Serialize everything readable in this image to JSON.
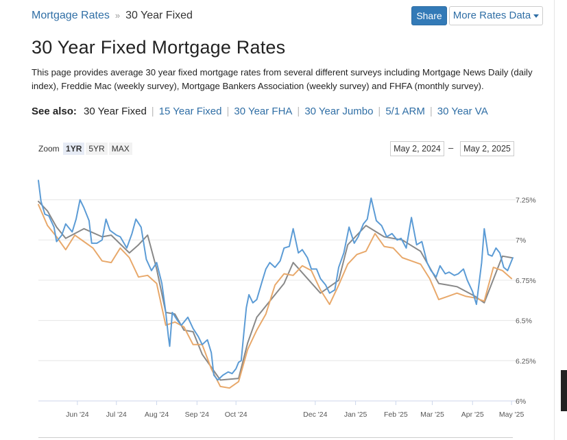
{
  "breadcrumb": {
    "home": "Mortgage Rates",
    "separator": "»",
    "current": "30 Year Fixed"
  },
  "toolbar": {
    "share_label": "Share",
    "more_label": "More Rates Data"
  },
  "page": {
    "title": "30 Year Fixed Mortgage Rates",
    "description": "This page provides average 30 year fixed mortgage rates from several different surveys including Mortgage News Daily (daily index), Freddie Mac (weekly survey), Mortgage Bankers Association (weekly survey) and FHFA (monthly survey)."
  },
  "see_also": {
    "label": "See also:",
    "current": "30 Year Fixed",
    "links": [
      "15 Year Fixed",
      "30 Year FHA",
      "30 Year Jumbo",
      "5/1 ARM",
      "30 Year VA"
    ]
  },
  "zoom": {
    "label": "Zoom",
    "buttons": [
      "1YR",
      "5YR",
      "MAX"
    ],
    "active": "1YR"
  },
  "range": {
    "from": "May 2, 2024",
    "to": "May 2, 2025",
    "dash": "–"
  },
  "colors": {
    "accent": "#2f6ea5",
    "mnd": "#5b9bd5",
    "freddie": "#e8a86a",
    "mba": "#888888"
  },
  "chart_data": {
    "type": "line",
    "x_range": [
      "2024-05-02",
      "2025-05-02"
    ],
    "ylim": [
      6.0,
      7.35
    ],
    "y_ticks": [
      6,
      6.25,
      6.5,
      6.75,
      7,
      7.25
    ],
    "y_tick_labels": [
      "6%",
      "6.25%",
      "6.5%",
      "6.75%",
      "7%",
      "7.25%"
    ],
    "x_ticks": [
      "2024-06-01",
      "2024-07-01",
      "2024-08-01",
      "2024-09-01",
      "2024-10-01",
      "2024-12-01",
      "2025-01-01",
      "2025-02-01",
      "2025-03-01",
      "2025-04-01",
      "2025-05-01"
    ],
    "x_tick_labels": [
      "Jun '24",
      "Jul '24",
      "Aug '24",
      "Sep '24",
      "Oct '24",
      "Dec '24",
      "Jan '25",
      "Feb '25",
      "Mar '25",
      "Apr '25",
      "May '25"
    ],
    "grid": true,
    "legend": "none",
    "series": [
      {
        "color": "#5b9bd5",
        "points": [
          [
            "2024-05-02",
            7.37
          ],
          [
            "2024-05-04",
            7.24
          ],
          [
            "2024-05-07",
            7.16
          ],
          [
            "2024-05-10",
            7.15
          ],
          [
            "2024-05-14",
            7.08
          ],
          [
            "2024-05-16",
            6.99
          ],
          [
            "2024-05-20",
            7.03
          ],
          [
            "2024-05-23",
            7.1
          ],
          [
            "2024-05-28",
            7.05
          ],
          [
            "2024-05-31",
            7.13
          ],
          [
            "2024-06-03",
            7.25
          ],
          [
            "2024-06-06",
            7.2
          ],
          [
            "2024-06-10",
            7.12
          ],
          [
            "2024-06-12",
            6.98
          ],
          [
            "2024-06-16",
            6.98
          ],
          [
            "2024-06-20",
            7.0
          ],
          [
            "2024-06-23",
            7.13
          ],
          [
            "2024-06-26",
            7.06
          ],
          [
            "2024-07-01",
            7.03
          ],
          [
            "2024-07-04",
            7.02
          ],
          [
            "2024-07-09",
            6.95
          ],
          [
            "2024-07-13",
            7.04
          ],
          [
            "2024-07-16",
            7.13
          ],
          [
            "2024-07-20",
            7.08
          ],
          [
            "2024-07-24",
            6.88
          ],
          [
            "2024-07-28",
            6.81
          ],
          [
            "2024-08-01",
            6.86
          ],
          [
            "2024-08-05",
            6.73
          ],
          [
            "2024-08-08",
            6.55
          ],
          [
            "2024-08-10",
            6.4
          ],
          [
            "2024-08-11",
            6.34
          ],
          [
            "2024-08-13",
            6.55
          ],
          [
            "2024-08-17",
            6.5
          ],
          [
            "2024-08-20",
            6.47
          ],
          [
            "2024-08-25",
            6.52
          ],
          [
            "2024-08-29",
            6.45
          ],
          [
            "2024-09-02",
            6.4
          ],
          [
            "2024-09-05",
            6.35
          ],
          [
            "2024-09-09",
            6.38
          ],
          [
            "2024-09-12",
            6.3
          ],
          [
            "2024-09-14",
            6.16
          ],
          [
            "2024-09-17",
            6.13
          ],
          [
            "2024-09-21",
            6.16
          ],
          [
            "2024-09-25",
            6.18
          ],
          [
            "2024-09-28",
            6.17
          ],
          [
            "2024-10-01",
            6.2
          ],
          [
            "2024-10-03",
            6.24
          ],
          [
            "2024-10-05",
            6.25
          ],
          [
            "2024-10-07",
            6.42
          ],
          [
            "2024-10-09",
            6.58
          ],
          [
            "2024-10-11",
            6.66
          ],
          [
            "2024-10-14",
            6.61
          ],
          [
            "2024-10-17",
            6.63
          ],
          [
            "2024-10-21",
            6.74
          ],
          [
            "2024-10-24",
            6.82
          ],
          [
            "2024-10-27",
            6.86
          ],
          [
            "2024-10-31",
            6.83
          ],
          [
            "2024-11-04",
            6.87
          ],
          [
            "2024-11-07",
            6.95
          ],
          [
            "2024-11-11",
            6.96
          ],
          [
            "2024-11-14",
            7.07
          ],
          [
            "2024-11-18",
            6.92
          ],
          [
            "2024-11-21",
            6.94
          ],
          [
            "2024-11-25",
            6.89
          ],
          [
            "2024-11-28",
            6.82
          ],
          [
            "2024-12-02",
            6.82
          ],
          [
            "2024-12-05",
            6.76
          ],
          [
            "2024-12-09",
            6.72
          ],
          [
            "2024-12-12",
            6.67
          ],
          [
            "2024-12-16",
            6.69
          ],
          [
            "2024-12-19",
            6.83
          ],
          [
            "2024-12-23",
            6.92
          ],
          [
            "2024-12-27",
            7.08
          ],
          [
            "2024-12-31",
            6.98
          ],
          [
            "2025-01-03",
            7.02
          ],
          [
            "2025-01-07",
            7.1
          ],
          [
            "2025-01-10",
            7.13
          ],
          [
            "2025-01-13",
            7.26
          ],
          [
            "2025-01-17",
            7.12
          ],
          [
            "2025-01-21",
            7.09
          ],
          [
            "2025-01-25",
            7.02
          ],
          [
            "2025-01-29",
            7.04
          ],
          [
            "2025-02-02",
            7.0
          ],
          [
            "2025-02-05",
            7.01
          ],
          [
            "2025-02-09",
            6.95
          ],
          [
            "2025-02-13",
            7.14
          ],
          [
            "2025-02-17",
            6.97
          ],
          [
            "2025-02-21",
            6.99
          ],
          [
            "2025-02-25",
            6.86
          ],
          [
            "2025-02-28",
            6.81
          ],
          [
            "2025-03-04",
            6.77
          ],
          [
            "2025-03-07",
            6.84
          ],
          [
            "2025-03-11",
            6.79
          ],
          [
            "2025-03-14",
            6.8
          ],
          [
            "2025-03-18",
            6.78
          ],
          [
            "2025-03-21",
            6.79
          ],
          [
            "2025-03-25",
            6.82
          ],
          [
            "2025-03-28",
            6.75
          ],
          [
            "2025-04-01",
            6.68
          ],
          [
            "2025-04-04",
            6.6
          ],
          [
            "2025-04-08",
            6.86
          ],
          [
            "2025-04-10",
            7.07
          ],
          [
            "2025-04-13",
            6.91
          ],
          [
            "2025-04-16",
            6.9
          ],
          [
            "2025-04-19",
            6.95
          ],
          [
            "2025-04-22",
            6.92
          ],
          [
            "2025-04-25",
            6.83
          ],
          [
            "2025-04-28",
            6.81
          ],
          [
            "2025-05-02",
            6.89
          ]
        ]
      },
      {
        "color": "#e8a86a",
        "points": [
          [
            "2024-05-02",
            7.22
          ],
          [
            "2024-05-09",
            7.09
          ],
          [
            "2024-05-16",
            7.02
          ],
          [
            "2024-05-23",
            6.94
          ],
          [
            "2024-05-30",
            7.03
          ],
          [
            "2024-06-06",
            6.99
          ],
          [
            "2024-06-13",
            6.95
          ],
          [
            "2024-06-20",
            6.87
          ],
          [
            "2024-06-27",
            6.86
          ],
          [
            "2024-07-04",
            6.95
          ],
          [
            "2024-07-11",
            6.89
          ],
          [
            "2024-07-18",
            6.77
          ],
          [
            "2024-07-25",
            6.78
          ],
          [
            "2024-08-01",
            6.73
          ],
          [
            "2024-08-08",
            6.47
          ],
          [
            "2024-08-15",
            6.49
          ],
          [
            "2024-08-22",
            6.46
          ],
          [
            "2024-08-29",
            6.35
          ],
          [
            "2024-09-05",
            6.35
          ],
          [
            "2024-09-12",
            6.2
          ],
          [
            "2024-09-19",
            6.09
          ],
          [
            "2024-09-26",
            6.08
          ],
          [
            "2024-10-03",
            6.12
          ],
          [
            "2024-10-10",
            6.32
          ],
          [
            "2024-10-17",
            6.44
          ],
          [
            "2024-10-24",
            6.54
          ],
          [
            "2024-10-31",
            6.72
          ],
          [
            "2024-11-07",
            6.79
          ],
          [
            "2024-11-14",
            6.78
          ],
          [
            "2024-11-21",
            6.84
          ],
          [
            "2024-11-28",
            6.81
          ],
          [
            "2024-12-05",
            6.69
          ],
          [
            "2024-12-12",
            6.6
          ],
          [
            "2024-12-19",
            6.72
          ],
          [
            "2024-12-26",
            6.85
          ],
          [
            "2025-01-02",
            6.91
          ],
          [
            "2025-01-09",
            6.93
          ],
          [
            "2025-01-16",
            7.04
          ],
          [
            "2025-01-23",
            6.96
          ],
          [
            "2025-01-30",
            6.95
          ],
          [
            "2025-02-06",
            6.89
          ],
          [
            "2025-02-13",
            6.87
          ],
          [
            "2025-02-20",
            6.85
          ],
          [
            "2025-02-27",
            6.76
          ],
          [
            "2025-03-06",
            6.63
          ],
          [
            "2025-03-13",
            6.65
          ],
          [
            "2025-03-20",
            6.67
          ],
          [
            "2025-03-27",
            6.65
          ],
          [
            "2025-04-03",
            6.64
          ],
          [
            "2025-04-10",
            6.62
          ],
          [
            "2025-04-17",
            6.83
          ],
          [
            "2025-04-24",
            6.81
          ],
          [
            "2025-05-01",
            6.76
          ]
        ]
      },
      {
        "color": "#888888",
        "points": [
          [
            "2024-05-02",
            7.24
          ],
          [
            "2024-05-09",
            7.18
          ],
          [
            "2024-05-16",
            7.08
          ],
          [
            "2024-05-23",
            7.01
          ],
          [
            "2024-06-06",
            7.07
          ],
          [
            "2024-06-20",
            7.02
          ],
          [
            "2024-06-27",
            7.03
          ],
          [
            "2024-07-11",
            6.92
          ],
          [
            "2024-07-18",
            6.97
          ],
          [
            "2024-07-25",
            7.03
          ],
          [
            "2024-08-01",
            6.82
          ],
          [
            "2024-08-08",
            6.55
          ],
          [
            "2024-08-15",
            6.54
          ],
          [
            "2024-08-22",
            6.44
          ],
          [
            "2024-08-29",
            6.43
          ],
          [
            "2024-09-05",
            6.29
          ],
          [
            "2024-09-19",
            6.13
          ],
          [
            "2024-10-03",
            6.14
          ],
          [
            "2024-10-10",
            6.36
          ],
          [
            "2024-10-17",
            6.52
          ],
          [
            "2024-11-07",
            6.73
          ],
          [
            "2024-11-14",
            6.86
          ],
          [
            "2024-12-05",
            6.67
          ],
          [
            "2024-12-19",
            6.75
          ],
          [
            "2024-12-26",
            6.97
          ],
          [
            "2025-01-09",
            7.09
          ],
          [
            "2025-01-23",
            7.02
          ],
          [
            "2025-02-06",
            7.0
          ],
          [
            "2025-02-20",
            6.93
          ],
          [
            "2025-03-06",
            6.73
          ],
          [
            "2025-03-13",
            6.72
          ],
          [
            "2025-03-20",
            6.71
          ],
          [
            "2025-04-03",
            6.65
          ],
          [
            "2025-04-10",
            6.61
          ],
          [
            "2025-04-24",
            6.9
          ],
          [
            "2025-05-01",
            6.89
          ]
        ]
      }
    ]
  }
}
